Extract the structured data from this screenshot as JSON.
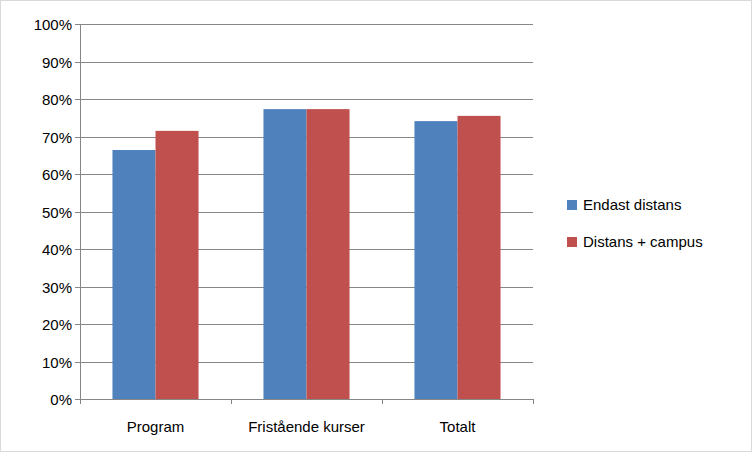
{
  "chart_data": {
    "type": "bar",
    "categories": [
      "Program",
      "Fristående kurser",
      "Totalt"
    ],
    "series": [
      {
        "name": "Endast distans",
        "color": "#4f81bd",
        "values": [
          66.4,
          77.3,
          74.1
        ]
      },
      {
        "name": "Distans + campus",
        "color": "#c0504d",
        "values": [
          71.5,
          77.3,
          75.5
        ]
      }
    ],
    "ylim": [
      0,
      100
    ],
    "yticks": [
      {
        "value": 0,
        "label": "0%"
      },
      {
        "value": 10,
        "label": "10%"
      },
      {
        "value": 20,
        "label": "20%"
      },
      {
        "value": 30,
        "label": "30%"
      },
      {
        "value": 40,
        "label": "40%"
      },
      {
        "value": 50,
        "label": "50%"
      },
      {
        "value": 60,
        "label": "60%"
      },
      {
        "value": 70,
        "label": "70%"
      },
      {
        "value": 80,
        "label": "80%"
      },
      {
        "value": 90,
        "label": "90%"
      },
      {
        "value": 100,
        "label": "100%"
      }
    ],
    "grid": true,
    "legend": "right"
  }
}
